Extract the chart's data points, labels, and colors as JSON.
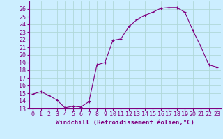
{
  "x": [
    0,
    1,
    2,
    3,
    4,
    5,
    6,
    7,
    8,
    9,
    10,
    11,
    12,
    13,
    14,
    15,
    16,
    17,
    18,
    19,
    20,
    21,
    22,
    23
  ],
  "y": [
    14.9,
    15.2,
    14.7,
    14.1,
    13.1,
    13.3,
    13.2,
    13.9,
    18.7,
    19.0,
    21.9,
    22.1,
    23.7,
    24.6,
    25.2,
    25.6,
    26.1,
    26.2,
    26.2,
    25.6,
    23.2,
    21.1,
    18.7,
    18.4
  ],
  "xlabel": "Windchill (Refroidissement éolien,°C)",
  "xlim": [
    -0.5,
    23.5
  ],
  "ylim": [
    13,
    27
  ],
  "yticks": [
    13,
    14,
    15,
    16,
    17,
    18,
    19,
    20,
    21,
    22,
    23,
    24,
    25,
    26
  ],
  "xticks": [
    0,
    1,
    2,
    3,
    4,
    5,
    6,
    7,
    8,
    9,
    10,
    11,
    12,
    13,
    14,
    15,
    16,
    17,
    18,
    19,
    20,
    21,
    22,
    23
  ],
  "line_color": "#800080",
  "marker": "+",
  "bg_color": "#cceeff",
  "grid_color": "#b0d8d8",
  "label_fontsize": 6.5,
  "tick_fontsize": 6.0
}
